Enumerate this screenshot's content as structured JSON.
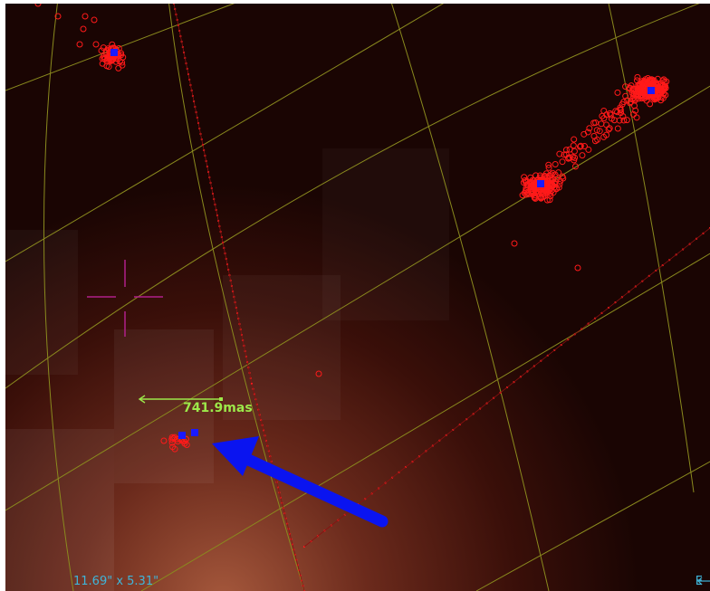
{
  "viewer": {
    "fov_label": "11.69\" x 5.31\"",
    "east_label": "E",
    "distance_label": "741.9mas"
  },
  "colors": {
    "background": "#1a0503",
    "grid": "#8a8a1e",
    "source": "#ff1a1a",
    "object_marker": "#1a1aff",
    "reticle": "#b0208a",
    "arrow": "#0a14f0",
    "measure": "#9ce84a",
    "label": "#3fb5d9"
  },
  "icons": {
    "reticle": "crosshair-icon",
    "annotation": "arrow-icon"
  }
}
